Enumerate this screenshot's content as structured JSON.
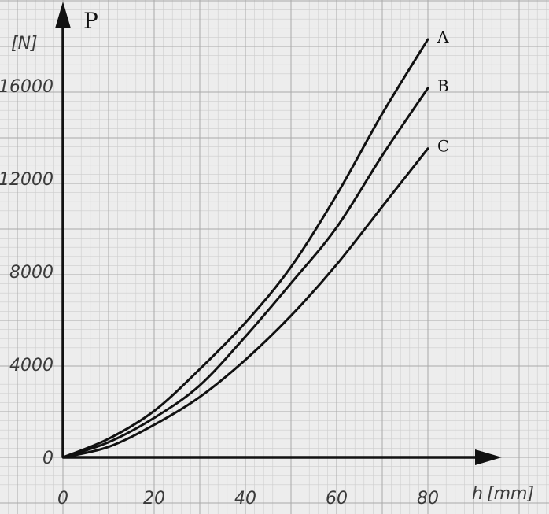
{
  "chart_data": {
    "type": "line",
    "title": "",
    "ylabel": "P",
    "y_unit": "[N]",
    "xlabel": "h",
    "x_unit": "[mm]",
    "xlim": [
      0,
      95
    ],
    "ylim": [
      0,
      19000
    ],
    "x_ticks": [
      "0",
      "20",
      "40",
      "60",
      "80"
    ],
    "x_tick_values": [
      0,
      20,
      40,
      60,
      80
    ],
    "y_ticks": [
      "0",
      "4000",
      "8000",
      "12000",
      "16000"
    ],
    "y_tick_values": [
      0,
      4000,
      8000,
      12000,
      16000
    ],
    "grid": true,
    "series": [
      {
        "name": "A",
        "x": [
          0,
          10,
          20,
          30,
          40,
          50,
          60,
          70,
          80
        ],
        "y": [
          0,
          800,
          2000,
          3800,
          5800,
          8200,
          11300,
          14800,
          18000
        ]
      },
      {
        "name": "B",
        "x": [
          0,
          10,
          20,
          30,
          40,
          50,
          60,
          70,
          80
        ],
        "y": [
          0,
          650,
          1700,
          3100,
          5200,
          7500,
          9900,
          13000,
          15900
        ]
      },
      {
        "name": "C",
        "x": [
          0,
          10,
          20,
          30,
          40,
          50,
          60,
          70,
          80
        ],
        "y": [
          0,
          450,
          1400,
          2600,
          4200,
          6100,
          8300,
          10800,
          13300
        ]
      }
    ],
    "colors": {
      "paper": "#ededed",
      "grid_major": "#a9a9a9",
      "grid_minor": "#cdcdcd",
      "ink": "#111111",
      "label": "#3a3a3a"
    }
  }
}
